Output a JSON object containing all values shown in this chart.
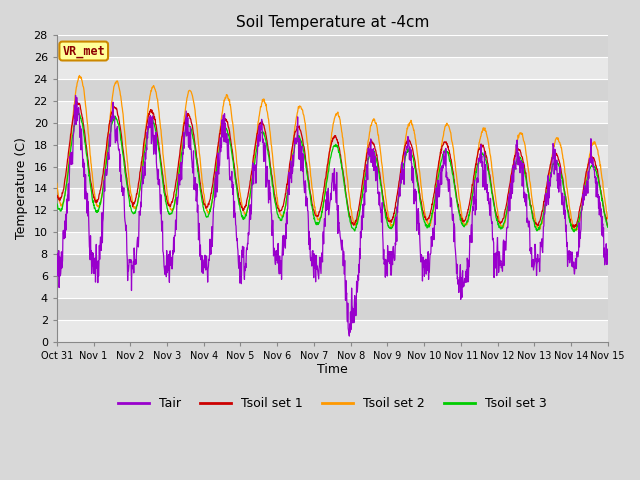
{
  "title": "Soil Temperature at -4cm",
  "xlabel": "Time",
  "ylabel": "Temperature (C)",
  "ylim": [
    0,
    28
  ],
  "yticks": [
    0,
    2,
    4,
    6,
    8,
    10,
    12,
    14,
    16,
    18,
    20,
    22,
    24,
    26,
    28
  ],
  "bg_color": "#d8d8d8",
  "plot_bg_color": "#d8d8d8",
  "band_colors": [
    "#e8e8e8",
    "#d4d4d4"
  ],
  "grid_color": "#ffffff",
  "line_colors": {
    "Tair": "#9900cc",
    "Tsoil set 1": "#cc0000",
    "Tsoil set 2": "#ff9900",
    "Tsoil set 3": "#00cc00"
  },
  "legend_label": "VR_met",
  "legend_box_color": "#ffff99",
  "legend_box_edge": "#cc8800",
  "n_days": 15,
  "n_points_per_day": 96,
  "tick_labels": [
    "Oct 31",
    "Nov 1",
    "Nov 2",
    "Nov 3",
    "Nov 4",
    "Nov 5",
    "Nov 6",
    "Nov 7",
    "Nov 8",
    "Nov 9",
    "Nov 10",
    "Nov 11",
    "Nov 12",
    "Nov 13",
    "Nov 14",
    "Nov 15"
  ]
}
